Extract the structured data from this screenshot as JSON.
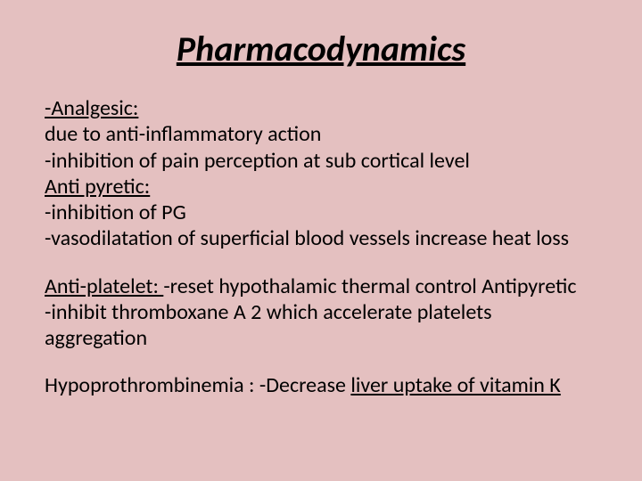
{
  "background_color": "#e4c0c0",
  "text_color": "#000000",
  "title": {
    "text": "Pharmacodynamics",
    "fontsize": 40,
    "italic": true,
    "underline": true,
    "bold": true
  },
  "body_fontsize": 24,
  "sections": {
    "analgesic_label": "-Analgesic:",
    "analgesic_line1": "due to anti-inflammatory action",
    "analgesic_line2": "-inhibition of pain perception at sub cortical level",
    "antipyretic_label": " Anti pyretic:",
    "antipyretic_line1": "-inhibition of PG",
    "antipyretic_line2": "-vasodilatation of superficial blood vessels increase heat loss",
    "antiplatelet_label": "Anti-platelet: ",
    "antiplatelet_rest1": "-reset hypothalamic thermal control Antipyretic",
    "antiplatelet_line2": "-inhibit thromboxane A 2 which accelerate platelets aggregation",
    "hypo_label_a": "Hypoprothrombinemia : -Decrease ",
    "hypo_label_b": "liver uptake of vitamin K"
  }
}
